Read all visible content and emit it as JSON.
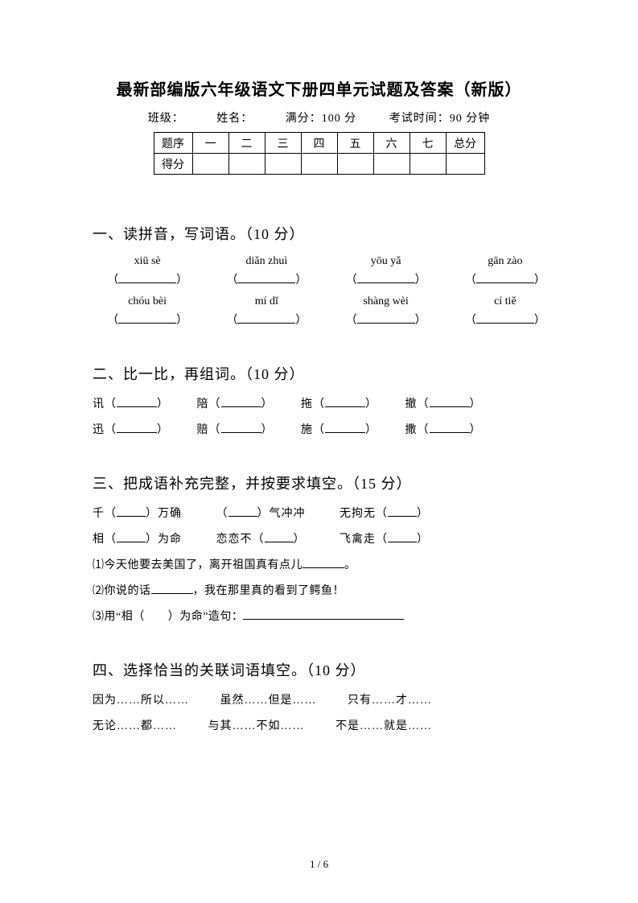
{
  "title": "最新部编版六年级语文下册四单元试题及答案（新版）",
  "meta": {
    "class_label": "班级：",
    "name_label": "姓名：",
    "full_score_label": "满分：",
    "full_score_value": "100 分",
    "time_label": "考试时间：",
    "time_value": "90 分钟"
  },
  "score_table": {
    "row1": [
      "题序",
      "一",
      "二",
      "三",
      "四",
      "五",
      "六",
      "七",
      "总分"
    ],
    "row2_label": "得分"
  },
  "s1": {
    "heading": "一、读拼音，写词语。（10 分）",
    "pinyin": [
      [
        "xiū sè",
        "diǎn zhuì",
        "yōu yǎ",
        "gān zào"
      ],
      [
        "chóu bèi",
        "mí dǐ",
        "shàng wèi",
        "cí tiě"
      ]
    ]
  },
  "s2": {
    "heading": "二、比一比，再组词。（10 分）",
    "pairs": [
      [
        "讯",
        "陪",
        "拖",
        "撤"
      ],
      [
        "迅",
        "赔",
        "施",
        "撒"
      ]
    ]
  },
  "s3": {
    "heading": "三、把成语补充完整，并按要求填空。（15 分）",
    "idioms_row1": {
      "a_pre": "千（",
      "a_post": "）万确",
      "b_pre": "（",
      "b_post": "）气冲冲",
      "c_pre": "无拘无（",
      "c_post": "）"
    },
    "idioms_row2": {
      "a_pre": "相（",
      "a_post": "）为命",
      "b_pre": "恋恋不（",
      "b_post": "）",
      "c_pre": "飞禽走（",
      "c_post": "）"
    },
    "q1_pre": "⑴今天他要去美国了，离开祖国真有点儿",
    "q1_post": "。",
    "q2_pre": "⑵你说的话",
    "q2_post": "，我在那里真的看到了鳄鱼！",
    "q3_pre": "⑶用“相（　　）为命”造句："
  },
  "s4": {
    "heading": "四、选择恰当的关联词语填空。（10 分）",
    "row1": [
      "因为……所以……",
      "虽然……但是……",
      "只有……才……"
    ],
    "row2": [
      "无论……都……",
      "与其……不如……",
      "不是……就是……"
    ]
  },
  "page": {
    "current": "1",
    "sep": " / ",
    "total": "6"
  }
}
